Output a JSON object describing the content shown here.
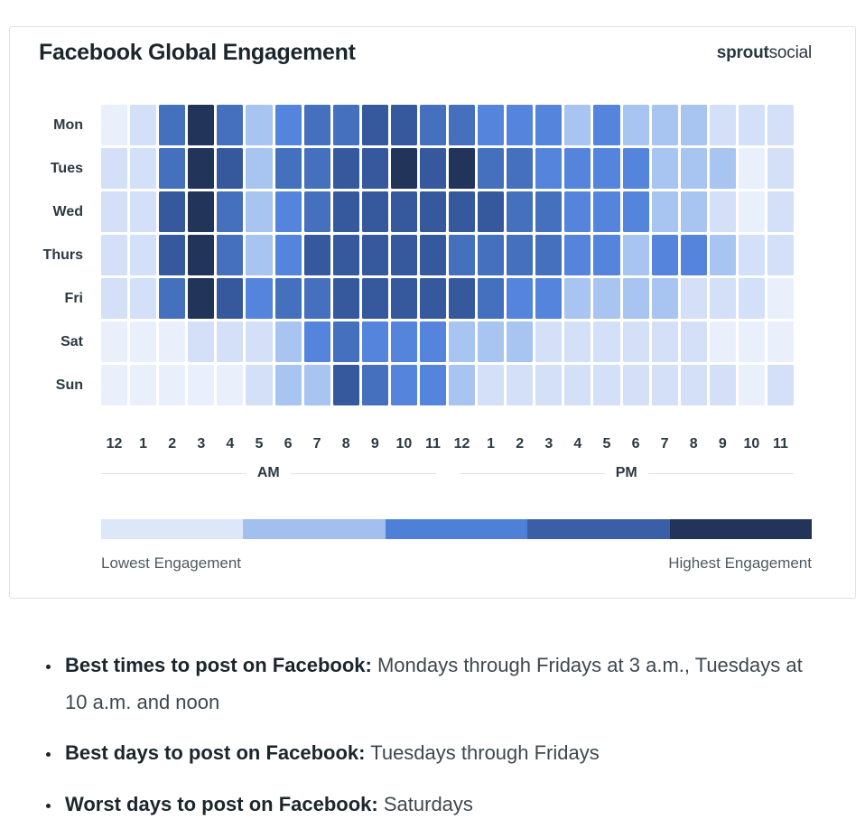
{
  "card": {
    "title": "Facebook Global Engagement",
    "logo": {
      "bold": "sprout",
      "regular": "social"
    }
  },
  "chart_data": {
    "type": "heatmap",
    "title": "Facebook Global Engagement",
    "rows": [
      "Mon",
      "Tues",
      "Wed",
      "Thurs",
      "Fri",
      "Sat",
      "Sun"
    ],
    "columns": [
      "12",
      "1",
      "2",
      "3",
      "4",
      "5",
      "6",
      "7",
      "8",
      "9",
      "10",
      "11",
      "12",
      "1",
      "2",
      "3",
      "4",
      "5",
      "6",
      "7",
      "8",
      "9",
      "10",
      "11"
    ],
    "column_groups": [
      {
        "label": "AM",
        "span": 12
      },
      {
        "label": "PM",
        "span": 12
      }
    ],
    "scale": {
      "description": "engagement level 0 (lowest) to 6 (highest)",
      "level_colors": [
        "#EAF0FB",
        "#D3E0F7",
        "#A8C4F0",
        "#5484DB",
        "#4470BE",
        "#36599E",
        "#22345A"
      ],
      "legend_colors": [
        "#DCE7F9",
        "#A2BFEE",
        "#4F80D8",
        "#3A5FA6",
        "#22345A"
      ],
      "min_label": "Lowest Engagement",
      "max_label": "Highest Engagement"
    },
    "values": [
      [
        0,
        1,
        4,
        6,
        4,
        2,
        3,
        4,
        4,
        5,
        5,
        4,
        4,
        3,
        3,
        3,
        2,
        3,
        2,
        2,
        2,
        1,
        1,
        1
      ],
      [
        1,
        1,
        4,
        6,
        5,
        2,
        4,
        4,
        5,
        5,
        6,
        5,
        6,
        4,
        4,
        3,
        3,
        3,
        3,
        2,
        2,
        2,
        0,
        1
      ],
      [
        1,
        1,
        5,
        6,
        4,
        2,
        3,
        4,
        5,
        5,
        5,
        5,
        5,
        5,
        4,
        4,
        3,
        3,
        3,
        2,
        2,
        1,
        0,
        1
      ],
      [
        1,
        1,
        5,
        6,
        4,
        2,
        3,
        5,
        5,
        5,
        5,
        5,
        4,
        4,
        4,
        4,
        3,
        3,
        2,
        3,
        3,
        2,
        1,
        1
      ],
      [
        1,
        1,
        4,
        6,
        5,
        3,
        4,
        4,
        5,
        5,
        5,
        5,
        5,
        4,
        3,
        3,
        2,
        2,
        2,
        2,
        1,
        1,
        1,
        0
      ],
      [
        0,
        0,
        0,
        1,
        1,
        1,
        2,
        3,
        4,
        3,
        3,
        3,
        2,
        2,
        2,
        1,
        1,
        1,
        1,
        1,
        1,
        0,
        0,
        0
      ],
      [
        0,
        0,
        0,
        0,
        0,
        1,
        2,
        2,
        5,
        4,
        3,
        3,
        2,
        1,
        1,
        1,
        1,
        1,
        1,
        1,
        1,
        1,
        0,
        1
      ]
    ]
  },
  "axis": {
    "am": "AM",
    "pm": "PM"
  },
  "legend": {
    "lowest": "Lowest Engagement",
    "highest": "Highest Engagement"
  },
  "bullets": [
    {
      "bold": "Best times to post on Facebook:",
      "text": " Mondays through Fridays at 3 a.m., Tuesdays at 10 a.m. and noon"
    },
    {
      "bold": "Best days to post on Facebook:",
      "text": " Tuesdays through Fridays"
    },
    {
      "bold": "Worst days to post on Facebook:",
      "text": " Saturdays"
    }
  ]
}
